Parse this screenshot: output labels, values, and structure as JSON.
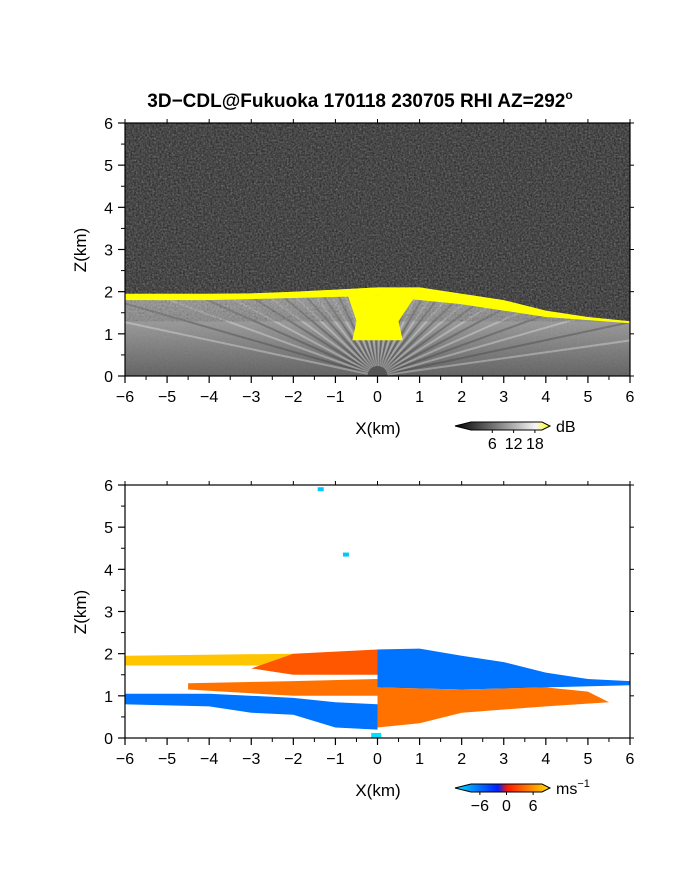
{
  "title": "3D−CDL@Fukuoka 170118 230705 RHI AZ=292",
  "title_superscript": "o",
  "colors": {
    "panel1_background": "#202020",
    "snr_high": "#ffff00",
    "velocity_negative": "#0040ff",
    "velocity_positive": "#ff2a00",
    "velocity_strong_positive": "#ffd000",
    "velocity_strong_negative": "#00e0ff"
  },
  "chart_data": [
    {
      "type": "heatmap",
      "quantity": "SNR",
      "xlabel": "X(km)",
      "ylabel": "Z(km)",
      "xlim": [
        -6,
        6
      ],
      "ylim": [
        0,
        6
      ],
      "xticks": [
        "−6",
        "−5",
        "−4",
        "−3",
        "−2",
        "−1",
        "0",
        "1",
        "2",
        "3",
        "4",
        "5",
        "6"
      ],
      "yticks": [
        "0",
        "1",
        "2",
        "3",
        "4",
        "5",
        "6"
      ],
      "colorbar": {
        "unit": "dB",
        "ticks": [
          "6",
          "12",
          "18"
        ],
        "range": [
          0,
          20
        ]
      },
      "layer_top_km": [
        {
          "x": -6.0,
          "z": 1.95
        },
        {
          "x": -5.0,
          "z": 1.95
        },
        {
          "x": -4.0,
          "z": 1.95
        },
        {
          "x": -3.0,
          "z": 1.96
        },
        {
          "x": -2.0,
          "z": 2.0
        },
        {
          "x": -1.0,
          "z": 2.05
        },
        {
          "x": 0.0,
          "z": 2.1
        },
        {
          "x": 1.0,
          "z": 2.1
        },
        {
          "x": 2.0,
          "z": 1.95
        },
        {
          "x": 3.0,
          "z": 1.8
        },
        {
          "x": 4.0,
          "z": 1.55
        },
        {
          "x": 5.0,
          "z": 1.4
        },
        {
          "x": 6.0,
          "z": 1.3
        }
      ],
      "high_snr_band_bottom_km": [
        {
          "x": -6.0,
          "z": 1.8
        },
        {
          "x": -4.0,
          "z": 1.8
        },
        {
          "x": -2.0,
          "z": 1.85
        },
        {
          "x": 0.0,
          "z": 1.9
        },
        {
          "x": 2.0,
          "z": 1.7
        },
        {
          "x": 4.0,
          "z": 1.4
        },
        {
          "x": 6.0,
          "z": 1.25
        }
      ]
    },
    {
      "type": "heatmap",
      "quantity": "Doppler velocity",
      "xlabel": "X(km)",
      "ylabel": "Z(km)",
      "xlim": [
        -6,
        6
      ],
      "ylim": [
        0,
        6
      ],
      "xticks": [
        "−6",
        "−5",
        "−4",
        "−3",
        "−2",
        "−1",
        "0",
        "1",
        "2",
        "3",
        "4",
        "5",
        "6"
      ],
      "yticks": [
        "0",
        "1",
        "2",
        "3",
        "4",
        "5",
        "6"
      ],
      "colorbar": {
        "unit": "ms",
        "unit_superscript": "−1",
        "ticks": [
          "−6",
          "0",
          "6"
        ],
        "range": [
          -8,
          8
        ]
      },
      "isolated_points": [
        {
          "x": -1.35,
          "z": 5.9,
          "velocity": -7
        },
        {
          "x": -0.75,
          "z": 4.35,
          "velocity": -7
        }
      ],
      "regions": [
        {
          "velocity": 7,
          "polygon": [
            [
              -6,
              1.95
            ],
            [
              -2,
              2.0
            ],
            [
              -2,
              1.72
            ],
            [
              -6,
              1.72
            ]
          ]
        },
        {
          "velocity": 3,
          "polygon": [
            [
              -2,
              2.0
            ],
            [
              0,
              2.1
            ],
            [
              0,
              1.5
            ],
            [
              -2,
              1.5
            ],
            [
              -3,
              1.65
            ]
          ]
        },
        {
          "velocity": -4,
          "polygon": [
            [
              0,
              2.1
            ],
            [
              1,
              2.12
            ],
            [
              2,
              1.95
            ],
            [
              3,
              1.8
            ],
            [
              4,
              1.55
            ],
            [
              5,
              1.4
            ],
            [
              6,
              1.35
            ],
            [
              6,
              1.25
            ],
            [
              4,
              1.2
            ],
            [
              2,
              1.15
            ],
            [
              0,
              1.2
            ]
          ]
        },
        {
          "velocity": 4,
          "polygon": [
            [
              -4.5,
              1.3
            ],
            [
              -2,
              1.35
            ],
            [
              0,
              1.4
            ],
            [
              0,
              1.0
            ],
            [
              -2,
              1.0
            ],
            [
              -4.5,
              1.15
            ]
          ]
        },
        {
          "velocity": -4,
          "polygon": [
            [
              -6,
              1.05
            ],
            [
              -4,
              1.05
            ],
            [
              -2,
              0.95
            ],
            [
              -1,
              0.85
            ],
            [
              0,
              0.8
            ],
            [
              0,
              0.2
            ],
            [
              -1,
              0.25
            ],
            [
              -2,
              0.55
            ],
            [
              -3,
              0.6
            ],
            [
              -4,
              0.75
            ],
            [
              -6,
              0.8
            ]
          ]
        },
        {
          "velocity": 4,
          "polygon": [
            [
              0,
              1.2
            ],
            [
              2,
              1.15
            ],
            [
              4,
              1.2
            ],
            [
              5,
              1.1
            ],
            [
              5.5,
              0.85
            ],
            [
              4,
              0.75
            ],
            [
              2,
              0.6
            ],
            [
              1,
              0.35
            ],
            [
              0,
              0.25
            ]
          ]
        }
      ]
    }
  ]
}
